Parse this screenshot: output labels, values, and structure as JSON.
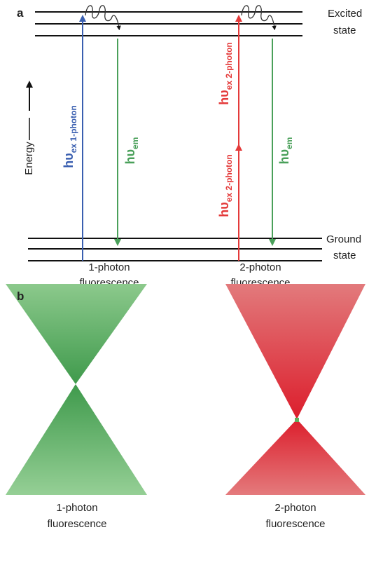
{
  "panel_a": {
    "label": "a",
    "excited_state": [
      "Excited",
      "state"
    ],
    "ground_state": [
      "Ground",
      "state"
    ],
    "energy": "Energy",
    "one_photon": {
      "excitation": {
        "symbol": "hυ",
        "subscript": "ex 1-photon"
      },
      "emission": {
        "symbol": "hυ",
        "subscript": "em"
      },
      "caption": [
        "1-photon",
        "fluorescence"
      ]
    },
    "two_photon": {
      "excitation_upper": {
        "symbol": "hυ",
        "subscript": "ex 2-photon"
      },
      "excitation_lower": {
        "symbol": "hυ",
        "subscript": "ex 2-photon"
      },
      "emission": {
        "symbol": "hυ",
        "subscript": "em"
      },
      "caption": [
        "2-photon",
        "fluorescence"
      ]
    }
  },
  "panel_b": {
    "label": "b",
    "one_photon_caption": [
      "1-photon",
      "fluorescence"
    ],
    "two_photon_caption": [
      "2-photon",
      "fluorescence"
    ]
  }
}
